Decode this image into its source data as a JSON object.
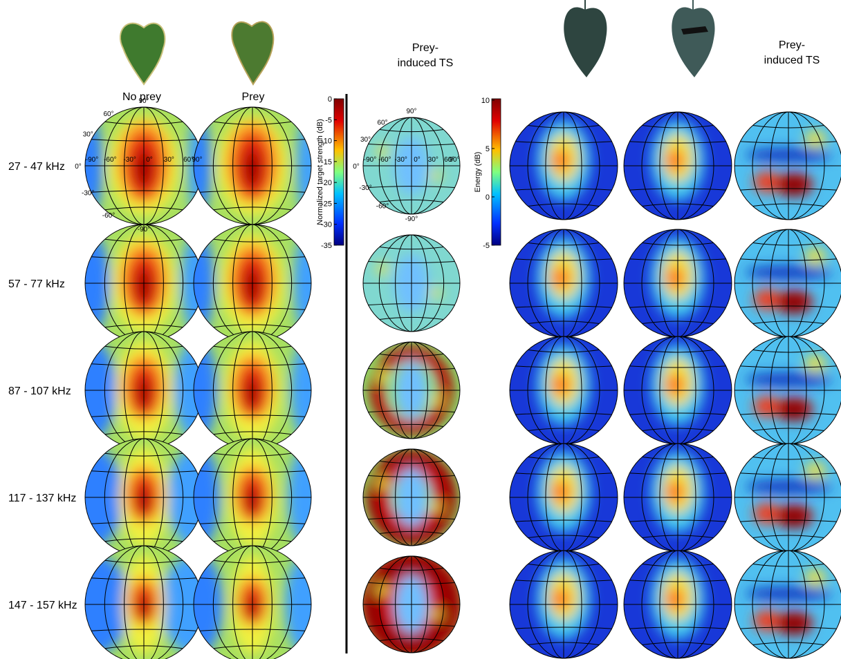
{
  "left_panel": {
    "columns": [
      "No prey",
      "Prey"
    ],
    "ts_title": [
      "Prey-",
      "induced TS"
    ]
  },
  "right_panel": {
    "ts_title": [
      "Prey-",
      "induced TS"
    ]
  },
  "rows": [
    "27 - 47 kHz",
    "57 - 77 kHz",
    "87 - 107 kHz",
    "117 - 137 kHz",
    "147 - 157 kHz"
  ],
  "colorbar_ts": {
    "label": "Normalized target strength (dB)",
    "ticks": [
      "0",
      "-5",
      "-10",
      "-15",
      "-20",
      "-25",
      "-30",
      "-35"
    ]
  },
  "colorbar_energy": {
    "label": "Energy (dB)",
    "ticks": [
      "10",
      "5",
      "0",
      "-5"
    ]
  },
  "globe_axes": {
    "lat": [
      "90°",
      "60°",
      "30°",
      "0°",
      "-30°",
      "-60°",
      "-90°"
    ],
    "lon": [
      "-90°",
      "-60°",
      "-30°",
      "0°",
      "30°",
      "60°",
      "90°"
    ]
  }
}
